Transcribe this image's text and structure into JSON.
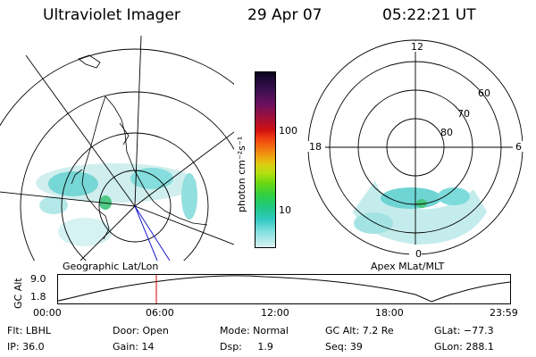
{
  "header": {
    "title": "Ultraviolet Imager",
    "date": "29 Apr 07",
    "time": "05:22:21 UT"
  },
  "left_panel": {
    "label": "Geographic Lat/Lon"
  },
  "right_panel": {
    "label": "Apex MLat/MLT",
    "mlt_labels": [
      "12",
      "18",
      "6",
      "0"
    ],
    "lat_labels": [
      "60",
      "70",
      "80"
    ]
  },
  "colorbar": {
    "label": "photon cm⁻²s⁻¹",
    "tick_labels": [
      "100",
      "10"
    ],
    "colors": [
      "#0b0520",
      "#3a1050",
      "#6a1060",
      "#a0103a",
      "#d01010",
      "#f04010",
      "#f07010",
      "#f0a010",
      "#d8d010",
      "#b0e010",
      "#70d810",
      "#30d040",
      "#20c880",
      "#30c8c0",
      "#80e0e0",
      "#d8f0f0"
    ]
  },
  "altitude_strip": {
    "axis_label": "GC Alt",
    "y_ticks": [
      "9.0",
      "1.8"
    ],
    "x_ticks": [
      "00:00",
      "06:00",
      "12:00",
      "18:00",
      "23:59"
    ]
  },
  "info": {
    "row1": [
      {
        "name": "filter",
        "text": "Flt: LBHL"
      },
      {
        "name": "door",
        "text": "Door: Open"
      },
      {
        "name": "mode",
        "text": "Mode: Normal"
      },
      {
        "name": "gc-alt",
        "text": "GC Alt: 7.2 Re"
      },
      {
        "name": "glat",
        "text": "GLat: −77.3"
      }
    ],
    "row2": [
      {
        "name": "ip",
        "text": "IP: 36.0"
      },
      {
        "name": "gain",
        "text": "Gain: 14"
      },
      {
        "name": "dsp",
        "text": "Dsp:     1.9"
      },
      {
        "name": "seq",
        "text": "Seq: 39"
      },
      {
        "name": "glon",
        "text": "GLon: 288.1"
      }
    ]
  }
}
